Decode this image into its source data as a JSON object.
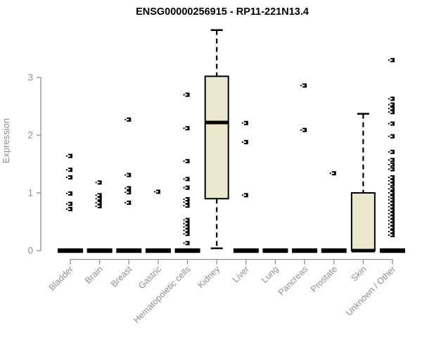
{
  "chart_data": {
    "type": "box",
    "title": "ENSG00000256915 - RP11-221N13.4",
    "xlabel": "",
    "ylabel": "Expression",
    "ylim": [
      0,
      3.9
    ],
    "yticks": [
      0,
      1,
      2,
      3
    ],
    "grid": false,
    "legend": "none",
    "categories": [
      "Bladder",
      "Brain",
      "Breast",
      "Gastric",
      "Hematopoietic cells",
      "Kidney",
      "Liver",
      "Lung",
      "Pancreas",
      "Prostate",
      "Skin",
      "Unknown / Other"
    ],
    "boxes": [
      {
        "category": "Bladder",
        "q1": 0,
        "median": 0,
        "q3": 0,
        "whisker_low": 0,
        "whisker_high": 0,
        "outliers": [
          1.64,
          1.4,
          1.27,
          0.99,
          0.81,
          0.72
        ]
      },
      {
        "category": "Brain",
        "q1": 0,
        "median": 0,
        "q3": 0,
        "whisker_low": 0,
        "whisker_high": 0,
        "outliers": [
          1.18,
          0.96,
          0.9,
          0.83,
          0.77
        ]
      },
      {
        "category": "Breast",
        "q1": 0,
        "median": 0,
        "q3": 0,
        "whisker_low": 0,
        "whisker_high": 0,
        "outliers": [
          2.27,
          1.31,
          1.08,
          1.01,
          0.83
        ]
      },
      {
        "category": "Gastric",
        "q1": 0,
        "median": 0,
        "q3": 0,
        "whisker_low": 0,
        "whisker_high": 0,
        "outliers": [
          1.02
        ]
      },
      {
        "category": "Hematopoietic cells",
        "q1": 0,
        "median": 0,
        "q3": 0,
        "whisker_low": 0,
        "whisker_high": 0,
        "outliers": [
          2.7,
          2.12,
          1.55,
          1.24,
          1.09,
          0.89,
          0.84,
          0.78,
          0.53,
          0.47,
          0.41,
          0.35,
          0.29,
          0.13
        ]
      },
      {
        "category": "Kidney",
        "q1": 0.9,
        "median": 2.22,
        "q3": 3.02,
        "whisker_low": 0.04,
        "whisker_high": 3.82,
        "outliers": []
      },
      {
        "category": "Liver",
        "q1": 0,
        "median": 0,
        "q3": 0,
        "whisker_low": 0,
        "whisker_high": 0,
        "outliers": [
          2.21,
          1.88,
          0.96
        ]
      },
      {
        "category": "Lung",
        "q1": 0,
        "median": 0,
        "q3": 0,
        "whisker_low": 0,
        "whisker_high": 0,
        "outliers": []
      },
      {
        "category": "Pancreas",
        "q1": 0,
        "median": 0,
        "q3": 0,
        "whisker_low": 0,
        "whisker_high": 0,
        "outliers": [
          2.86,
          2.09
        ]
      },
      {
        "category": "Prostate",
        "q1": 0,
        "median": 0,
        "q3": 0,
        "whisker_low": 0,
        "whisker_high": 0,
        "outliers": [
          1.34
        ]
      },
      {
        "category": "Skin",
        "q1": 0,
        "median": 0,
        "q3": 1.0,
        "whisker_low": 0,
        "whisker_high": 2.37,
        "outliers": []
      },
      {
        "category": "Unknown / Other",
        "q1": 0,
        "median": 0,
        "q3": 0,
        "whisker_low": 0,
        "whisker_high": 0,
        "outliers": [
          3.3,
          2.63,
          2.53,
          2.46,
          2.4,
          2.2,
          1.98,
          1.71,
          1.57,
          1.49,
          1.41,
          1.27,
          1.21,
          1.15,
          1.07,
          1.0,
          0.93,
          0.88,
          0.82,
          0.76,
          0.7,
          0.64,
          0.58,
          0.52,
          0.46,
          0.4,
          0.33,
          0.27
        ]
      }
    ],
    "colors": {
      "box_fill": "#ece8cd",
      "box_stroke": "#000000",
      "outlier": "#000000",
      "axis": "#8f8f8f",
      "title": "#000000",
      "background": "#ffffff"
    }
  }
}
